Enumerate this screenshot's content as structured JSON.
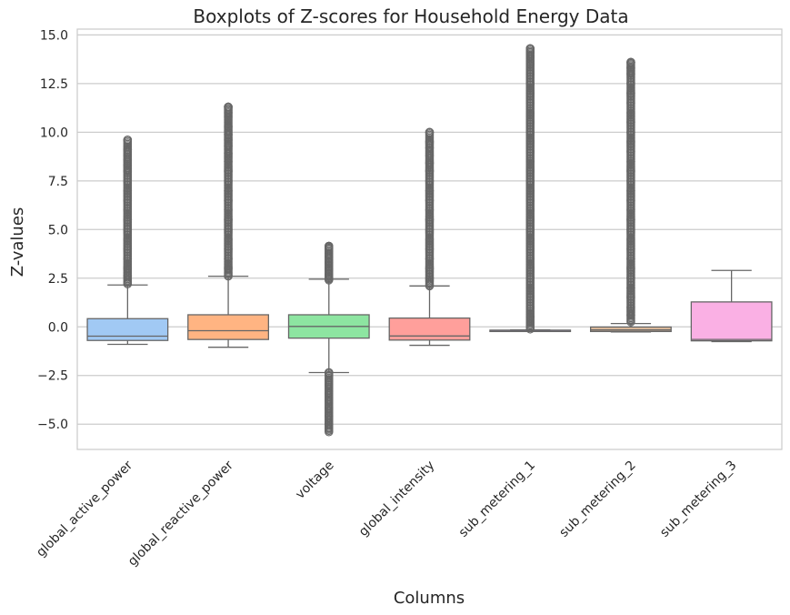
{
  "chart_data": {
    "type": "boxplot",
    "title": "Boxplots of Z-scores for Household Energy Data",
    "xlabel": "Columns",
    "ylabel": "Z-values",
    "ylim": [
      -6.3,
      15.3
    ],
    "yticks": [
      {
        "value": -5.0,
        "label": "−5.0"
      },
      {
        "value": -2.5,
        "label": "−2.5"
      },
      {
        "value": 0.0,
        "label": "0.0"
      },
      {
        "value": 2.5,
        "label": "2.5"
      },
      {
        "value": 5.0,
        "label": "5.0"
      },
      {
        "value": 7.5,
        "label": "7.5"
      },
      {
        "value": 10.0,
        "label": "10.0"
      },
      {
        "value": 12.5,
        "label": "12.5"
      },
      {
        "value": 15.0,
        "label": "15.0"
      }
    ],
    "grid": true,
    "xtick_rotation_deg": 45,
    "series": [
      {
        "category": "global_active_power",
        "color": "#a1c9f4",
        "whisker_low": -0.9,
        "q1": -0.7,
        "median": -0.48,
        "q3": 0.42,
        "whisker_high": 2.15,
        "outliers_high": [
          2.2,
          2.6,
          3.0,
          3.5,
          4.0,
          4.5,
          5.0,
          5.5,
          6.0,
          6.5,
          7.0,
          7.5,
          8.0,
          8.3,
          8.6,
          8.8,
          9.1,
          9.6
        ],
        "outliers_low": []
      },
      {
        "category": "global_reactive_power",
        "color": "#ffb482",
        "whisker_low": -1.05,
        "q1": -0.65,
        "median": -0.2,
        "q3": 0.62,
        "whisker_high": 2.6,
        "outliers_high": [
          2.6,
          3.0,
          3.5,
          4.0,
          4.5,
          5.0,
          5.5,
          6.0,
          6.5,
          7.0,
          7.5,
          8.0,
          8.5,
          8.9,
          9.3,
          9.6,
          9.9,
          10.3,
          11.0,
          11.3
        ],
        "outliers_low": []
      },
      {
        "category": "voltage",
        "color": "#8de5a1",
        "whisker_low": -2.35,
        "q1": -0.58,
        "median": 0.02,
        "q3": 0.62,
        "whisker_high": 2.45,
        "outliers_high": [
          2.4,
          2.7,
          3.0,
          3.3,
          3.6,
          3.8,
          4.0,
          4.15
        ],
        "outliers_low": [
          -2.35,
          -2.7,
          -3.0,
          -3.4,
          -3.8,
          -4.2,
          -4.6,
          -5.0,
          -5.2,
          -5.4
        ]
      },
      {
        "category": "global_intensity",
        "color": "#ff9f9b",
        "whisker_low": -0.95,
        "q1": -0.68,
        "median": -0.47,
        "q3": 0.45,
        "whisker_high": 2.1,
        "outliers_high": [
          2.1,
          2.5,
          3.0,
          3.5,
          4.0,
          4.5,
          5.0,
          5.5,
          6.0,
          6.5,
          7.0,
          7.5,
          8.0,
          8.4,
          8.8,
          9.2,
          9.5,
          10.0
        ],
        "outliers_low": []
      },
      {
        "category": "sub_metering_1",
        "color": "#d0bbff",
        "whisker_low": -0.19,
        "q1": -0.18,
        "median": -0.18,
        "q3": -0.17,
        "whisker_high": -0.16,
        "outliers_high": [
          -0.12,
          0.5,
          1.0,
          1.5,
          2.0,
          2.5,
          3.0,
          3.5,
          4.0,
          4.5,
          5.0,
          5.5,
          6.0,
          6.5,
          7.0,
          7.5,
          8.0,
          8.5,
          9.0,
          9.5,
          10.0,
          10.5,
          11.0,
          11.5,
          12.0,
          12.5,
          13.0,
          13.5,
          13.9,
          14.1,
          14.3
        ],
        "outliers_low": []
      },
      {
        "category": "sub_metering_2",
        "color": "#debb9b",
        "whisker_low": -0.26,
        "q1": -0.24,
        "median": -0.16,
        "q3": -0.01,
        "whisker_high": 0.17,
        "outliers_high": [
          0.25,
          0.6,
          1.0,
          1.5,
          2.0,
          2.5,
          3.0,
          3.5,
          4.0,
          4.5,
          5.0,
          5.5,
          6.0,
          6.5,
          7.0,
          7.5,
          8.0,
          8.5,
          9.0,
          9.5,
          10.0,
          10.5,
          11.0,
          11.5,
          12.0,
          12.5,
          13.0,
          13.3,
          13.6
        ],
        "outliers_low": []
      },
      {
        "category": "sub_metering_3",
        "color": "#fab0e4",
        "whisker_low": -0.76,
        "q1": -0.72,
        "median": -0.65,
        "q3": 1.28,
        "whisker_high": 2.9,
        "outliers_high": [],
        "outliers_low": []
      }
    ]
  }
}
